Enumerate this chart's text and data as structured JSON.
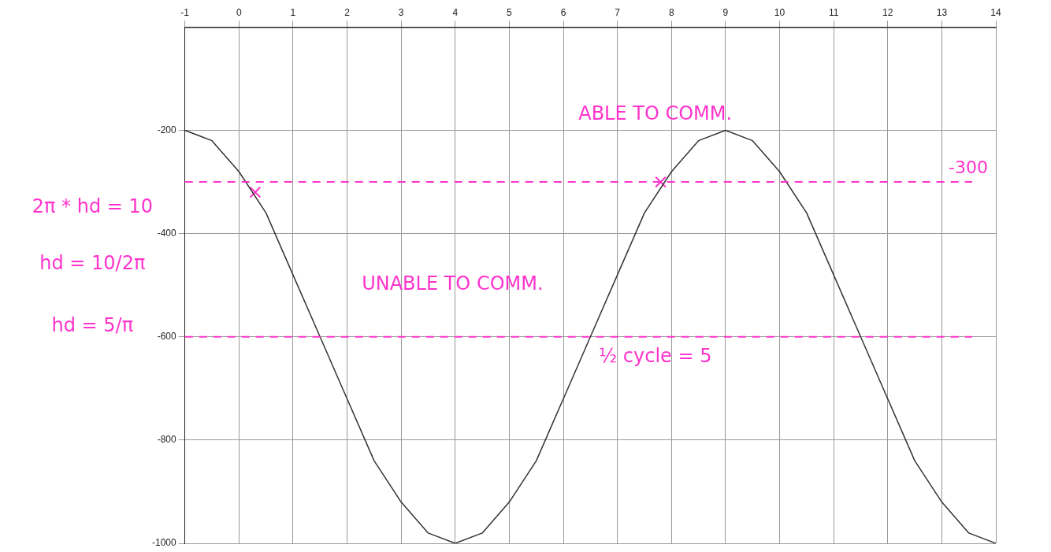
{
  "chart_data": {
    "type": "line",
    "x": [
      -1,
      -0.5,
      0,
      0.5,
      1,
      1.5,
      2,
      2.5,
      3,
      3.5,
      4,
      4.5,
      5,
      5.5,
      6,
      6.5,
      7,
      7.5,
      8,
      8.5,
      9,
      9.5,
      10,
      10.5,
      11,
      11.5,
      12,
      12.5,
      13,
      13.5,
      14
    ],
    "series": [
      {
        "color": "#333333",
        "marker": "none",
        "values": [
          -200,
          -220,
          -280,
          -360,
          -480,
          -600,
          -720,
          -840,
          -920,
          -980,
          -1000,
          -980,
          -920,
          -840,
          -720,
          -600,
          -480,
          -360,
          -280,
          -220,
          -200,
          -220,
          -280,
          -360,
          -480,
          -600,
          -720,
          -840,
          -920,
          -980,
          -1000
        ]
      },
      {
        "type": "scatter",
        "color": "#ff33cc",
        "marker": "cross",
        "x": [
          0.3,
          7.8
        ],
        "values": [
          -320,
          -300
        ]
      }
    ],
    "xlim": [
      -1,
      14
    ],
    "xticks": [
      -1,
      0,
      1,
      2,
      3,
      4,
      5,
      6,
      7,
      8,
      9,
      10,
      11,
      12,
      13,
      14
    ],
    "ylim": [
      -1000,
      0
    ],
    "yticks": [
      -1000,
      -800,
      -600,
      -400,
      -200
    ],
    "grid": true,
    "ref_lines": [
      {
        "axis": "y",
        "value": -300,
        "label": "-300",
        "color": "#ff33cc",
        "line_style": "dashed"
      },
      {
        "axis": "y",
        "value": -600,
        "label": null,
        "color": "#ff33cc",
        "line_style": "dashed"
      }
    ],
    "annotations": [
      "ABLE TO COMM.",
      "UNABLE TO COMM.",
      "2π * hd = 10",
      "hd = 10/2π",
      "hd = 5/π",
      "½ cycle = 5"
    ]
  }
}
